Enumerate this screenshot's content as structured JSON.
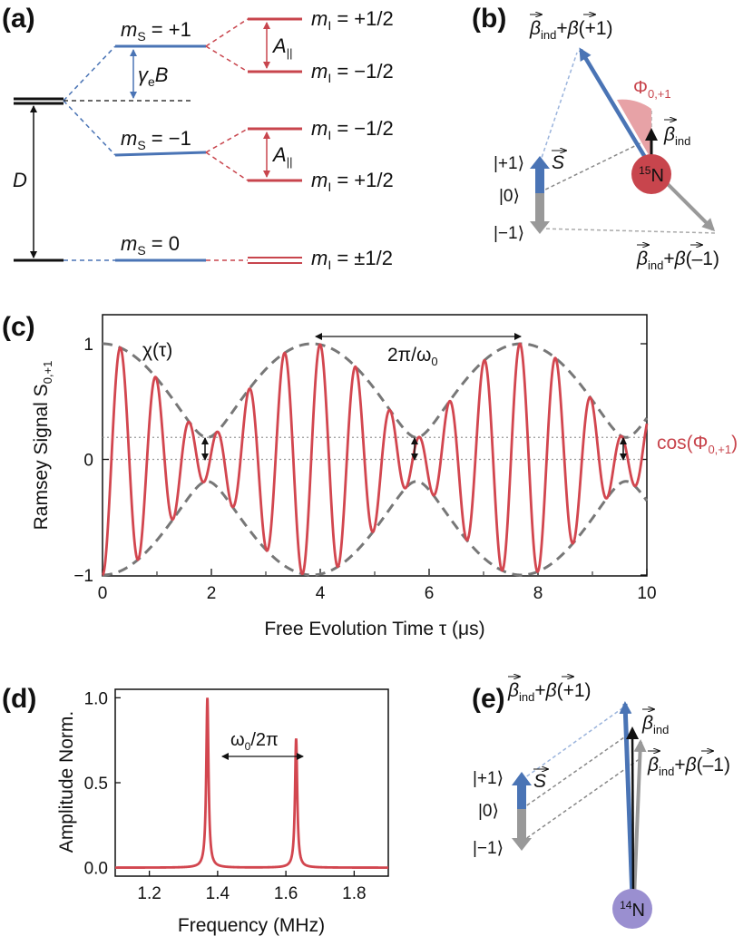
{
  "panels": {
    "a": {
      "label": "(a)",
      "D": "D",
      "gamma": "γ",
      "gamma_sub": "e",
      "gamma_B": "B",
      "A_par": "A",
      "A_sub": "||",
      "mS_label": "m",
      "mS_sub": "S",
      "mS_plus": " = +1",
      "mS_minus": " = −1",
      "mS_zero": " = 0",
      "mI_label": "m",
      "mI_sub": "I",
      "mI_p": " = +1/2",
      "mI_m": " = −1/2",
      "mI_pm": " = ±1/2",
      "colors": {
        "blue": "#4a74b5",
        "red": "#c8454d",
        "black": "#111111"
      }
    },
    "b": {
      "label": "(b)",
      "beta_plus": "+",
      "beta_ind": "ind",
      "beta_p1": "(+1)",
      "beta_m1": "(–1)",
      "phi": "Φ",
      "phi_sub": "0,+1",
      "S": "S",
      "ket_p": "|+1⟩",
      "ket_0": "|0⟩",
      "ket_m": "|−1⟩",
      "nucleus_mass": "15",
      "nucleus": "N",
      "nucleus_color": "#c8454d"
    },
    "c": {
      "label": "(c)",
      "chi": "χ(τ)",
      "period": "2π/ω",
      "period_sub": "0",
      "cos_label": "cos(Φ",
      "cos_sub": "0,+1",
      "cos_end": ")",
      "axes": {
        "xlabel": "Free Evolution Time τ (μs)",
        "ylabel": "Ramsey Signal S",
        "ylabel_sub": "0,+1",
        "xticks": [
          "0",
          "2",
          "4",
          "6",
          "8",
          "10"
        ],
        "yticks": [
          "1",
          "0",
          "−1"
        ],
        "xlim": [
          0,
          10
        ],
        "ylim": [
          -1,
          1
        ]
      }
    },
    "d": {
      "label": "(d)",
      "delta": "ω",
      "delta_sub": "0",
      "delta_end": "/2π",
      "axes": {
        "xlabel": "Frequency (MHz)",
        "ylabel": "Amplitude Norm.",
        "xticks": [
          "1.2",
          "1.4",
          "1.6",
          "1.8"
        ],
        "yticks": [
          "1.0",
          "0.5",
          "0.0"
        ],
        "xlim": [
          1.1,
          1.9
        ],
        "ylim": [
          -0.05,
          1.05
        ]
      }
    },
    "e": {
      "label": "(e)",
      "beta_plus": "+",
      "beta_ind": "ind",
      "beta_p1": "(+1)",
      "beta_m1": "(–1)",
      "S": "S",
      "ket_p": "|+1⟩",
      "ket_0": "|0⟩",
      "ket_m": "|−1⟩",
      "nucleus_mass": "14",
      "nucleus": "N",
      "nucleus_color": "#9a8fd0"
    }
  },
  "chart_data": [
    {
      "type": "line",
      "panel": "c",
      "xlabel": "Free Evolution Time τ (μs)",
      "ylabel": "Ramsey Signal S0,+1",
      "xlim": [
        0,
        10
      ],
      "ylim": [
        -1,
        1
      ],
      "series": [
        {
          "name": "",
          "description": "Ramsey signal",
          "model": {
            "fast_freq_MHz": 1.5,
            "env_freq_MHz": 0.26,
            "cos_phi": 0.19
          }
        },
        {
          "name": "χ(τ)",
          "envelope": true
        }
      ],
      "reference_lines_y": [
        0,
        0.19
      ]
    },
    {
      "type": "line",
      "panel": "d",
      "xlabel": "Frequency (MHz)",
      "ylabel": "Amplitude Norm.",
      "xlim": [
        1.1,
        1.9
      ],
      "ylim": [
        -0.05,
        1.05
      ],
      "peaks": [
        {
          "x": 1.37,
          "y": 1.0
        },
        {
          "x": 1.63,
          "y": 0.76
        }
      ]
    }
  ]
}
